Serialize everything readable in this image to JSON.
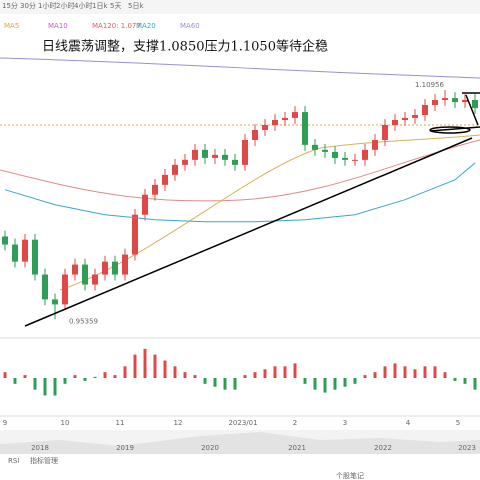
{
  "toolbar": [
    "15分",
    "30分",
    "1小时",
    "2小时",
    "4小时",
    "1日k",
    "5天",
    "5日k"
  ],
  "legend": [
    {
      "name": "MA5",
      "color": "#e8a33c"
    },
    {
      "name": "MA10",
      "color": "#c45bd1"
    },
    {
      "name": "MA120: 1.077",
      "color": "#e05a5a"
    },
    {
      "name": "MA20",
      "color": "#3aa7c9"
    },
    {
      "name": "MA60",
      "color": "#9c8fd0"
    }
  ],
  "chart_data": {
    "type": "candlestick",
    "title": "日线震荡调整，支撑1.0850压力1.1050等待企稳",
    "up_color": "#e04848",
    "down_color": "#2e9e56",
    "ylim": [
      0.943,
      1.147
    ],
    "open": [
      1.01,
      1.0045,
      0.9929,
      1.0078,
      0.9841,
      0.9672,
      0.9638,
      0.9841,
      0.9909,
      0.9773,
      0.9841,
      0.9929,
      0.9841,
      0.9977,
      1.0248,
      1.0384,
      1.0451,
      1.0519,
      1.0587,
      1.0621,
      1.0689,
      1.0634,
      1.0655,
      1.0621,
      1.0587,
      1.0756,
      1.0824,
      1.0858,
      1.0892,
      1.0906,
      1.0946,
      1.0723,
      1.0689,
      1.0675,
      1.0634,
      1.0621,
      1.0621,
      1.0689,
      1.0756,
      1.0858,
      1.0892,
      1.0906,
      1.0926,
      1.0994,
      1.1028,
      1.1041,
      1.1014,
      1.1028
    ],
    "close": [
      1.0045,
      0.9929,
      1.0078,
      0.9841,
      0.9672,
      0.9638,
      0.9841,
      0.9909,
      0.9773,
      0.9841,
      0.9929,
      0.9841,
      0.9977,
      1.0248,
      1.0384,
      1.0451,
      1.0519,
      1.0587,
      1.0621,
      1.0689,
      1.0634,
      1.0655,
      1.0621,
      1.0587,
      1.0756,
      1.0824,
      1.0858,
      1.0892,
      1.0906,
      1.0946,
      1.0723,
      1.0689,
      1.0675,
      1.0634,
      1.0621,
      1.0621,
      1.0689,
      1.0756,
      1.0858,
      1.0892,
      1.0906,
      1.0926,
      1.0994,
      1.1028,
      1.1041,
      1.1014,
      1.1028,
      1.0973
    ],
    "high": [
      1.014,
      1.0085,
      1.0118,
      1.0118,
      0.9881,
      0.9712,
      0.9881,
      0.9949,
      0.9949,
      0.9881,
      0.9969,
      0.9969,
      1.0017,
      1.0288,
      1.0424,
      1.0491,
      1.0559,
      1.0627,
      1.0661,
      1.0729,
      1.0729,
      1.0695,
      1.0695,
      1.0661,
      1.0796,
      1.0864,
      1.0898,
      1.0932,
      1.0946,
      1.0986,
      1.0986,
      1.0763,
      1.0729,
      1.0715,
      1.0674,
      1.0661,
      1.0729,
      1.0796,
      1.0898,
      1.0932,
      1.0946,
      1.0966,
      1.1034,
      1.1068,
      1.1096,
      1.1081,
      1.1068,
      1.1068
    ],
    "low": [
      1.0005,
      0.9889,
      0.9889,
      0.9801,
      0.9632,
      0.9536,
      0.9598,
      0.9801,
      0.9733,
      0.9733,
      0.9801,
      0.9801,
      0.9801,
      0.9937,
      1.0208,
      1.0344,
      1.0411,
      1.0479,
      1.0547,
      1.0581,
      1.0594,
      1.0594,
      1.0581,
      1.0547,
      1.0547,
      1.0716,
      1.0784,
      1.0818,
      1.0852,
      1.0866,
      1.0683,
      1.0649,
      1.0635,
      1.0594,
      1.0581,
      1.0581,
      1.0581,
      1.0649,
      1.0716,
      1.0818,
      1.0852,
      1.0866,
      1.0886,
      1.0954,
      1.0988,
      1.0974,
      1.0974,
      1.0933
    ],
    "ma_line": {
      "color": "#3aa7c9",
      "x": [
        0,
        5,
        10,
        15,
        20,
        25,
        30,
        35,
        40,
        45,
        47
      ],
      "values": [
        1.0418,
        1.0316,
        1.0248,
        1.0214,
        1.02,
        1.02,
        1.0214,
        1.0248,
        1.035,
        1.0485,
        1.06
      ]
    },
    "high_label": 1.10956,
    "low_label": 0.95359,
    "macd": [
      0.001,
      -0.001,
      0.0005,
      -0.002,
      -0.003,
      -0.003,
      -0.001,
      0.0005,
      -0.0005,
      0.0002,
      0.001,
      0.0005,
      0.002,
      0.004,
      0.005,
      0.004,
      0.003,
      0.002,
      0.001,
      0.0005,
      -0.001,
      -0.0015,
      -0.002,
      -0.002,
      0.0005,
      0.001,
      0.0015,
      0.002,
      0.002,
      0.0025,
      -0.001,
      -0.002,
      -0.0025,
      -0.002,
      -0.0015,
      -0.001,
      0.0005,
      0.001,
      0.002,
      0.0025,
      0.002,
      0.0015,
      0.002,
      0.002,
      0.001,
      -0.0005,
      -0.001,
      -0.002
    ],
    "macd_lim": [
      -0.006,
      0.006
    ],
    "x_labels": [
      "9",
      "10",
      "11",
      "12",
      "2023/01",
      "2",
      "3",
      "4",
      "5"
    ],
    "years": [
      "2018",
      "2019",
      "2020",
      "2021",
      "2022",
      "2023"
    ]
  },
  "footer": {
    "tabs": [
      "RSI",
      "指标管理"
    ],
    "note": "个股笔记"
  }
}
